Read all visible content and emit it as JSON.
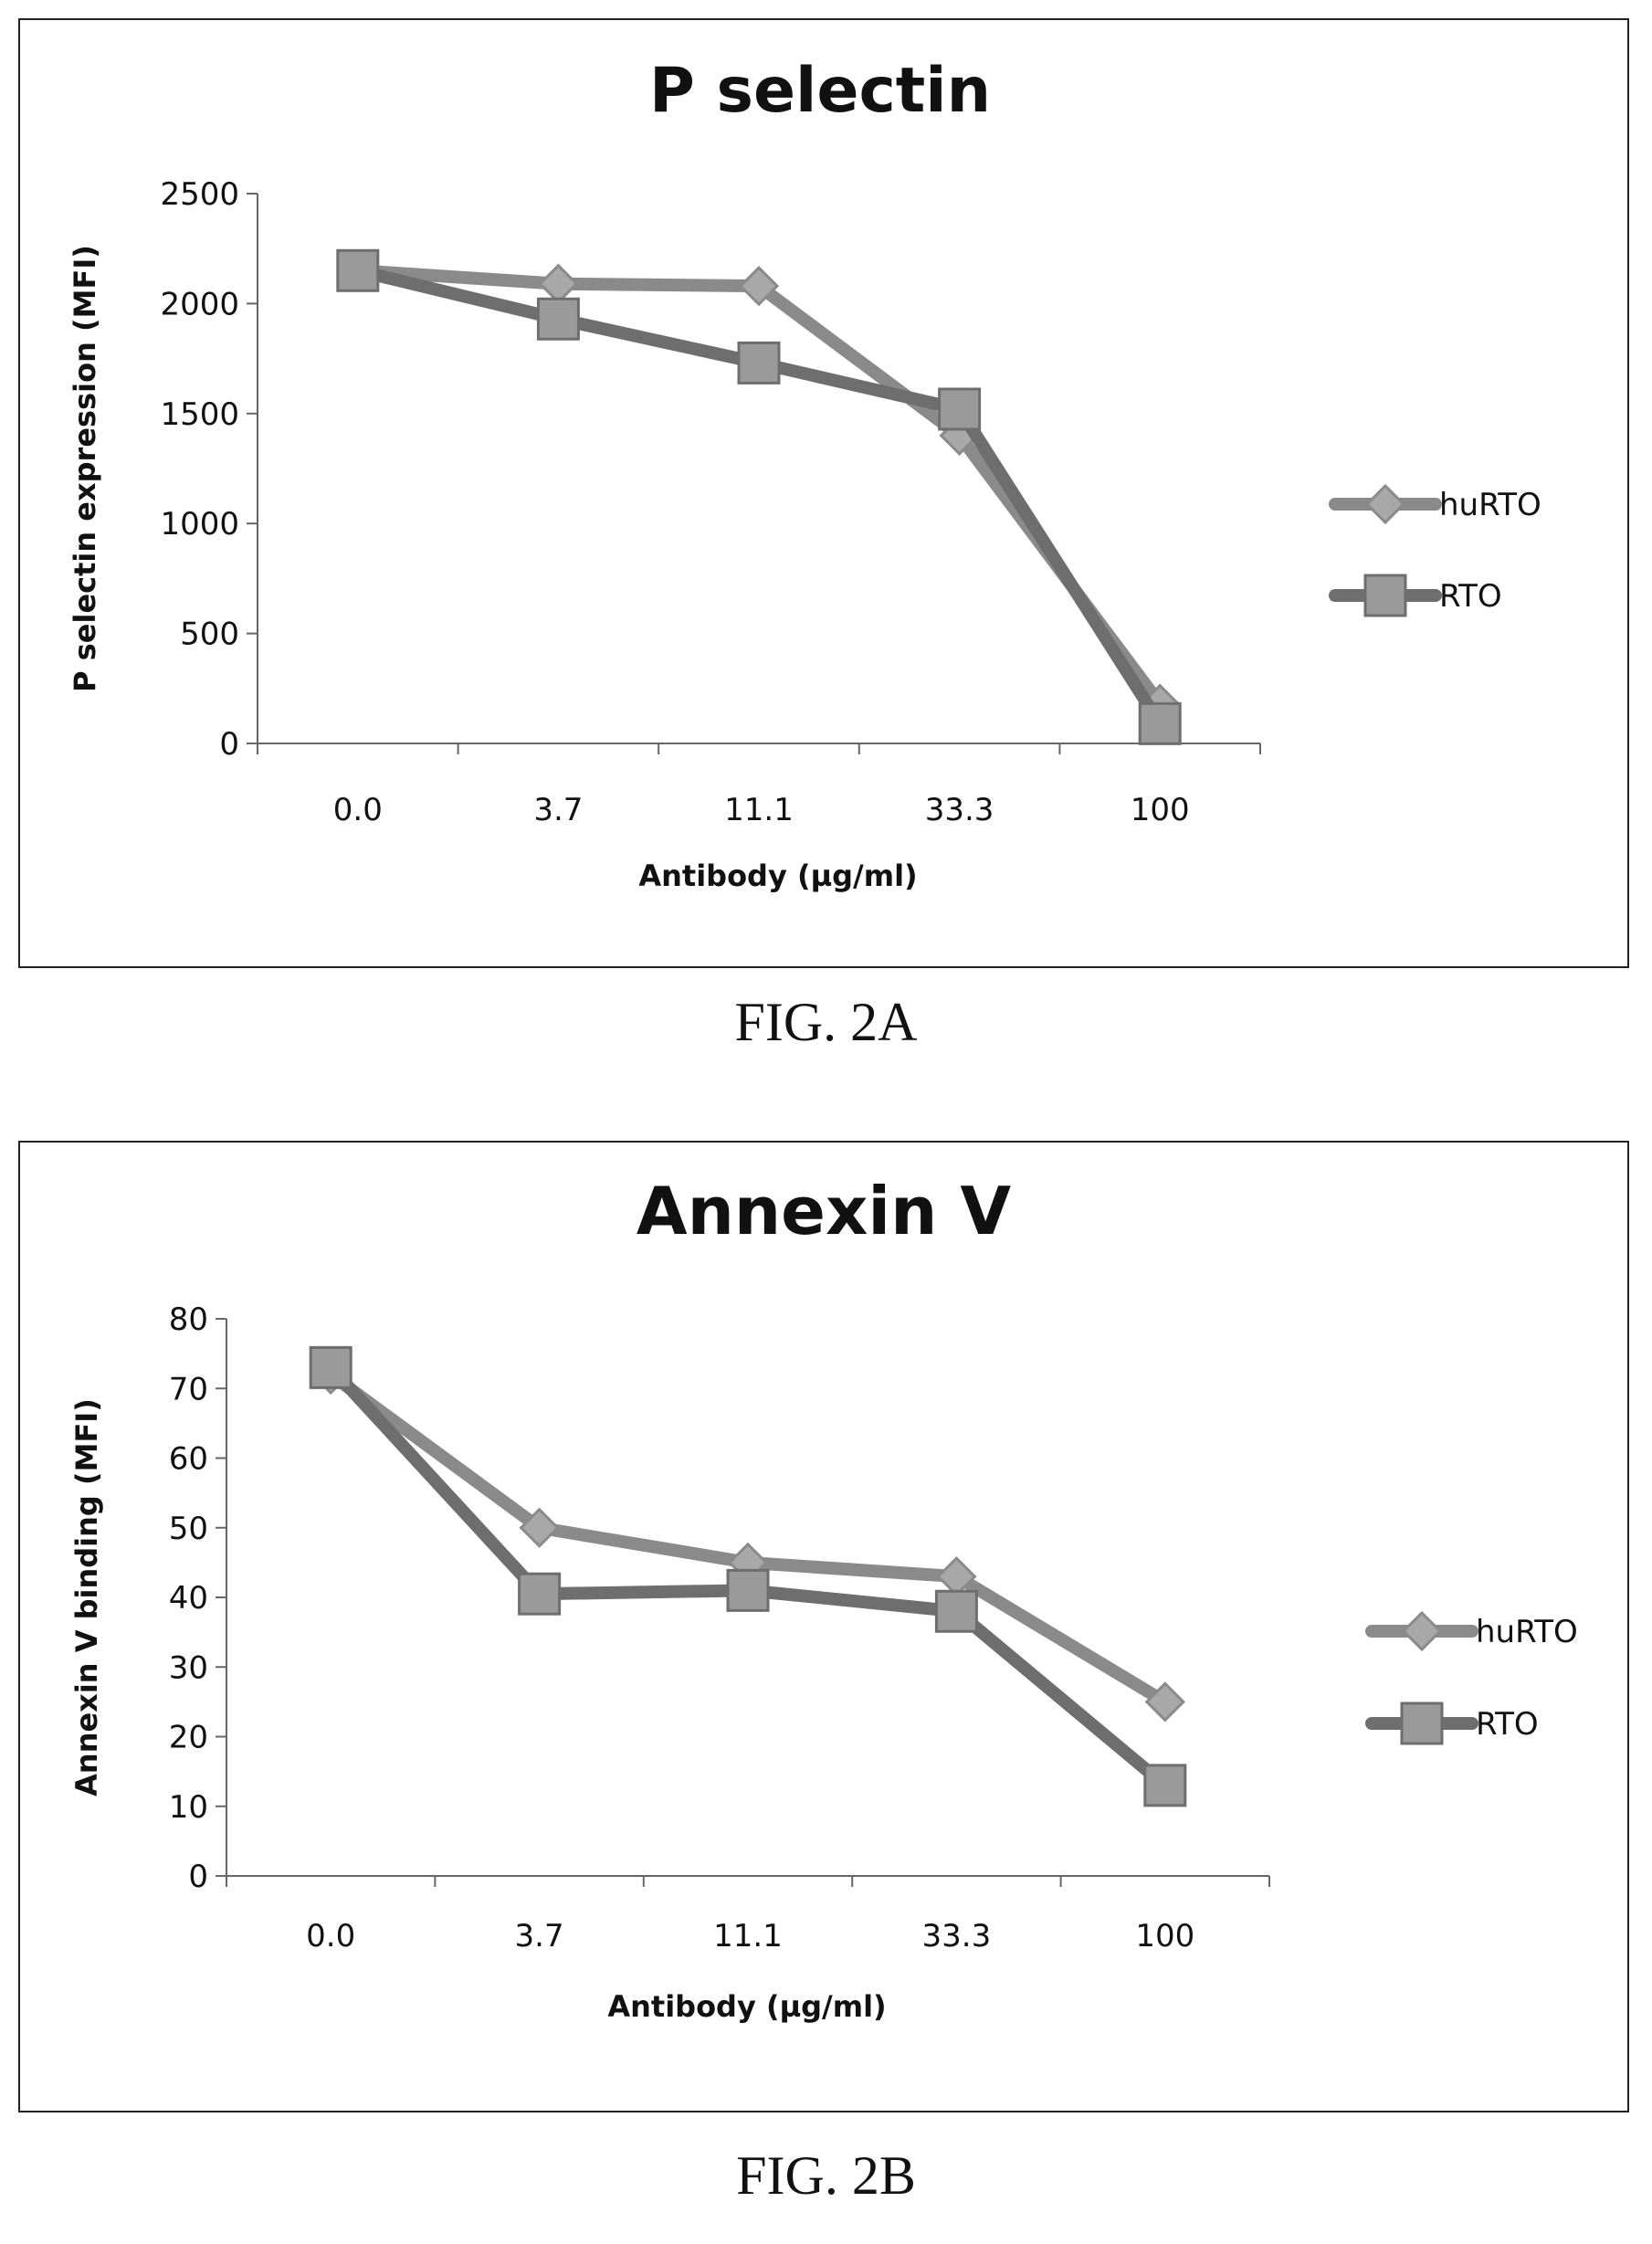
{
  "chart_data": [
    {
      "type": "line",
      "title": "P selectin",
      "xlabel": "Antibody (µg/ml)",
      "ylabel": "P selectin expression (MFI)",
      "categories": [
        "0.0",
        "3.7",
        "11.1",
        "33.3",
        "100"
      ],
      "ylim": [
        0,
        2500
      ],
      "yticks": [
        0,
        500,
        1000,
        1500,
        2000,
        2500
      ],
      "grid": false,
      "legend": "right",
      "series": [
        {
          "name": "huRTO",
          "marker": "diamond",
          "color": "#8a8a8a",
          "values": [
            2150,
            2090,
            2080,
            1400,
            180
          ]
        },
        {
          "name": "RTO",
          "marker": "square",
          "color": "#6e6e6e",
          "values": [
            2150,
            1930,
            1730,
            1520,
            90
          ]
        }
      ]
    },
    {
      "type": "line",
      "title": "Annexin V",
      "xlabel": "Antibody (µg/ml)",
      "ylabel": "Annexin V binding  (MFI)",
      "categories": [
        "0.0",
        "3.7",
        "11.1",
        "33.3",
        "100"
      ],
      "ylim": [
        0,
        80
      ],
      "yticks": [
        0,
        10,
        20,
        30,
        40,
        50,
        60,
        70,
        80
      ],
      "grid": false,
      "legend": "right",
      "series": [
        {
          "name": "huRTO",
          "marker": "diamond",
          "color": "#8a8a8a",
          "values": [
            72,
            50,
            45,
            43,
            25
          ]
        },
        {
          "name": "RTO",
          "marker": "square",
          "color": "#6e6e6e",
          "values": [
            73,
            40.5,
            41,
            38,
            13
          ]
        }
      ]
    }
  ],
  "figures": {
    "a_label": "FIG. 2A",
    "b_label": "FIG. 2B"
  }
}
